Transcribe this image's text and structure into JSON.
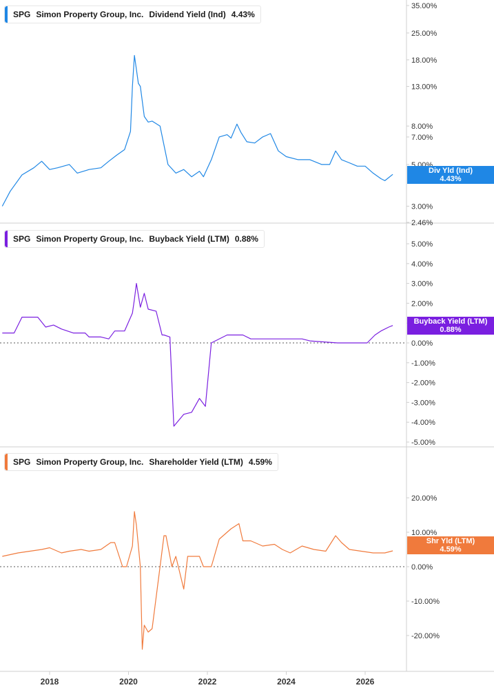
{
  "colors": {
    "dividend": "#1f87e5",
    "buyback": "#7a1fe0",
    "shareholder": "#f07a3c",
    "grid": "#e8e8e8",
    "axis_text": "#333333",
    "separator": "#cfcfcf"
  },
  "panels": [
    {
      "ticker": "SPG",
      "company": "Simon Property Group, Inc.",
      "metric": "Dividend Yield (Ind)",
      "value": "4.43%",
      "tag_label": "Div Yld (Ind)",
      "tag_value": "4.43%"
    },
    {
      "ticker": "SPG",
      "company": "Simon Property Group, Inc.",
      "metric": "Buyback Yield (LTM)",
      "value": "0.88%",
      "tag_label": "Buyback Yield (LTM)",
      "tag_value": "0.88%"
    },
    {
      "ticker": "SPG",
      "company": "Simon Property Group, Inc.",
      "metric": "Shareholder Yield (LTM)",
      "value": "4.59%",
      "tag_label": "Shr Yld (LTM)",
      "tag_value": "4.59%"
    }
  ],
  "chart_data": [
    {
      "type": "line",
      "yscale": "log",
      "ylim": [
        2.46,
        35
      ],
      "yticks": [
        2.46,
        3,
        5,
        7,
        8,
        13,
        18,
        25,
        35
      ],
      "ytick_labels": [
        "2.46%",
        "3.00%",
        "5.00%",
        "7.00%",
        "8.00%",
        "13.00%",
        "18.00%",
        "25.00%",
        "35.00%"
      ],
      "series": [
        {
          "name": "Dividend Yield (Ind)",
          "x": [
            2016.8,
            2017.0,
            2017.3,
            2017.6,
            2017.8,
            2018.0,
            2018.2,
            2018.5,
            2018.7,
            2019.0,
            2019.3,
            2019.5,
            2019.7,
            2019.9,
            2020.05,
            2020.1,
            2020.15,
            2020.2,
            2020.25,
            2020.3,
            2020.4,
            2020.5,
            2020.6,
            2020.8,
            2021.0,
            2021.2,
            2021.4,
            2021.6,
            2021.8,
            2021.9,
            2022.1,
            2022.3,
            2022.5,
            2022.6,
            2022.75,
            2022.85,
            2023.0,
            2023.2,
            2023.4,
            2023.6,
            2023.8,
            2024.0,
            2024.3,
            2024.6,
            2024.9,
            2025.1,
            2025.25,
            2025.4,
            2025.6,
            2025.8,
            2026.0,
            2026.2,
            2026.4,
            2026.5,
            2026.7
          ],
          "y": [
            3.0,
            3.6,
            4.4,
            4.8,
            5.2,
            4.7,
            4.8,
            5.0,
            4.5,
            4.7,
            4.8,
            5.2,
            5.6,
            6.0,
            7.5,
            13.0,
            19.0,
            16.0,
            13.5,
            13.0,
            9.0,
            8.4,
            8.5,
            8.0,
            5.0,
            4.5,
            4.7,
            4.3,
            4.6,
            4.3,
            5.3,
            7.0,
            7.2,
            6.9,
            8.2,
            7.4,
            6.6,
            6.5,
            7.0,
            7.3,
            5.9,
            5.5,
            5.3,
            5.3,
            5.0,
            5.0,
            5.9,
            5.3,
            5.1,
            4.9,
            4.9,
            4.5,
            4.2,
            4.1,
            4.43
          ]
        }
      ]
    },
    {
      "type": "line",
      "ylim": [
        -5,
        5
      ],
      "yticks": [
        -5,
        -4,
        -3,
        -2,
        -1,
        0,
        1,
        2,
        3,
        4,
        5
      ],
      "ytick_labels": [
        "-5.00%",
        "-4.00%",
        "-3.00%",
        "-2.00%",
        "-1.00%",
        "0.00%",
        "1.00%",
        "2.00%",
        "3.00%",
        "4.00%",
        "5.00%"
      ],
      "series": [
        {
          "name": "Buyback Yield (LTM)",
          "x": [
            2016.8,
            2017.1,
            2017.3,
            2017.4,
            2017.7,
            2017.9,
            2018.1,
            2018.3,
            2018.6,
            2018.9,
            2019.0,
            2019.3,
            2019.5,
            2019.65,
            2019.9,
            2020.1,
            2020.15,
            2020.2,
            2020.3,
            2020.4,
            2020.5,
            2020.7,
            2020.85,
            2020.9,
            2021.05,
            2021.15,
            2021.4,
            2021.6,
            2021.8,
            2021.95,
            2022.1,
            2022.5,
            2022.9,
            2023.1,
            2023.4,
            2024.0,
            2024.4,
            2024.6,
            2025.3,
            2025.9,
            2026.05,
            2026.25,
            2026.4,
            2026.6,
            2026.7
          ],
          "y": [
            0.5,
            0.5,
            1.3,
            1.3,
            1.3,
            0.8,
            0.9,
            0.7,
            0.5,
            0.5,
            0.3,
            0.3,
            0.2,
            0.6,
            0.6,
            1.5,
            2.2,
            3.0,
            1.8,
            2.5,
            1.7,
            1.6,
            0.4,
            0.4,
            0.3,
            -4.2,
            -3.6,
            -3.5,
            -2.8,
            -3.2,
            0.0,
            0.4,
            0.4,
            0.2,
            0.2,
            0.2,
            0.2,
            0.1,
            0.0,
            0.0,
            0.0,
            0.4,
            0.6,
            0.8,
            0.88
          ]
        }
      ]
    },
    {
      "type": "line",
      "ylim": [
        -30,
        30
      ],
      "yticks": [
        -20,
        -10,
        0,
        10,
        20
      ],
      "ytick_labels": [
        "-20.00%",
        "-10.00%",
        "0.00%",
        "10.00%",
        "20.00%"
      ],
      "series": [
        {
          "name": "Shareholder Yield (LTM)",
          "x": [
            2016.8,
            2017.2,
            2017.5,
            2017.8,
            2018.0,
            2018.3,
            2018.5,
            2018.8,
            2019.0,
            2019.3,
            2019.55,
            2019.65,
            2019.85,
            2019.95,
            2020.1,
            2020.15,
            2020.2,
            2020.3,
            2020.35,
            2020.4,
            2020.5,
            2020.6,
            2020.8,
            2020.9,
            2020.95,
            2021.1,
            2021.2,
            2021.4,
            2021.5,
            2021.6,
            2021.8,
            2021.9,
            2022.1,
            2022.3,
            2022.6,
            2022.8,
            2022.9,
            2023.1,
            2023.4,
            2023.7,
            2023.9,
            2024.1,
            2024.4,
            2024.7,
            2025.0,
            2025.25,
            2025.4,
            2025.6,
            2025.9,
            2026.2,
            2026.5,
            2026.7
          ],
          "y": [
            3.0,
            4.0,
            4.5,
            5.0,
            5.5,
            4.0,
            4.5,
            5.0,
            4.5,
            5.0,
            7.0,
            7.0,
            0.0,
            0.0,
            6.0,
            16.0,
            12.0,
            0.0,
            -24.0,
            -17.0,
            -19.0,
            -18.0,
            0.0,
            9.0,
            9.0,
            0.0,
            3.0,
            -6.5,
            3.0,
            3.0,
            3.0,
            0.0,
            0.0,
            8.0,
            11.0,
            12.5,
            7.5,
            7.5,
            6.0,
            6.5,
            5.0,
            4.0,
            6.0,
            5.0,
            4.5,
            9.0,
            7.0,
            5.0,
            4.5,
            4.0,
            4.0,
            4.59
          ]
        }
      ]
    }
  ],
  "x_axis": {
    "ticks": [
      2018,
      2020,
      2022,
      2024,
      2026
    ],
    "tick_labels": [
      "2018",
      "2020",
      "2022",
      "2024",
      "2026"
    ]
  }
}
